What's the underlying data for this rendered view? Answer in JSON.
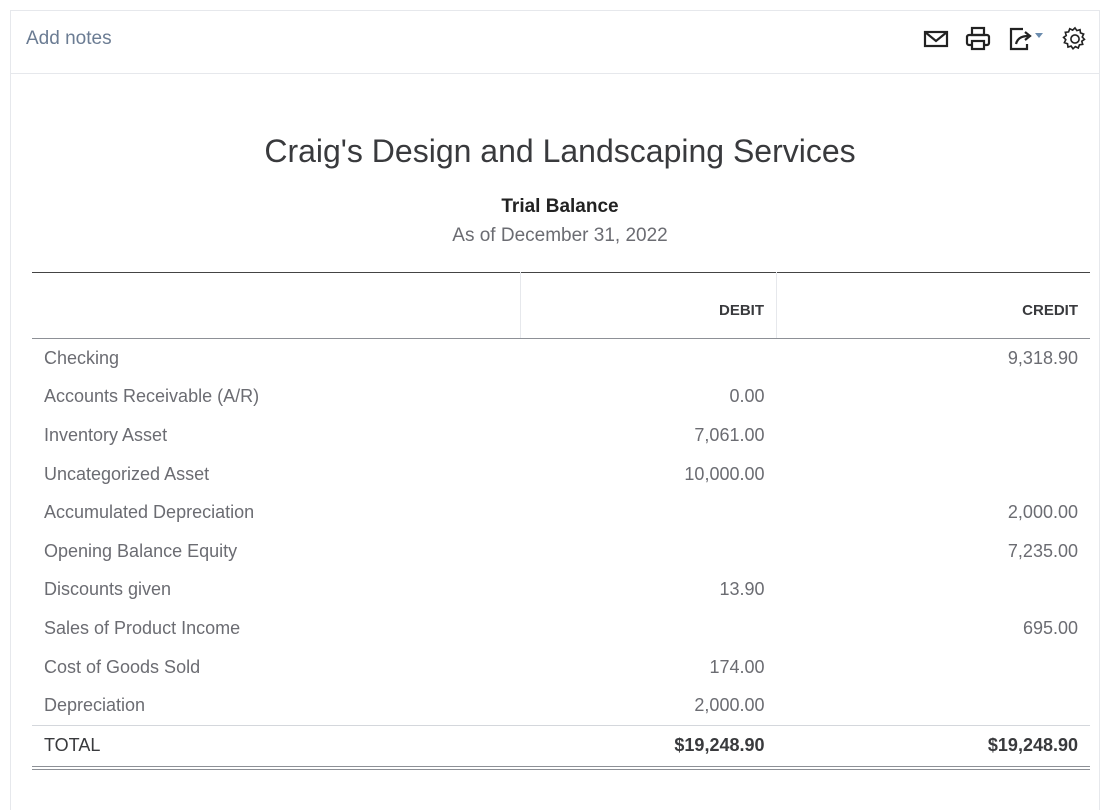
{
  "toolbar": {
    "add_notes": "Add notes",
    "icons": [
      "mail-icon",
      "print-icon",
      "export-icon",
      "settings-icon"
    ]
  },
  "report": {
    "company": "Craig's Design and Landscaping Services",
    "title": "Trial Balance",
    "date": "As of December 31, 2022"
  },
  "table": {
    "headers": [
      "",
      "DEBIT",
      "CREDIT"
    ],
    "rows": [
      {
        "account": "Checking",
        "debit": "",
        "credit": "9,318.90"
      },
      {
        "account": "Accounts Receivable (A/R)",
        "debit": "0.00",
        "credit": ""
      },
      {
        "account": "Inventory Asset",
        "debit": "7,061.00",
        "credit": ""
      },
      {
        "account": "Uncategorized Asset",
        "debit": "10,000.00",
        "credit": ""
      },
      {
        "account": "Accumulated Depreciation",
        "debit": "",
        "credit": "2,000.00"
      },
      {
        "account": "Opening Balance Equity",
        "debit": "",
        "credit": "7,235.00"
      },
      {
        "account": "Discounts given",
        "debit": "13.90",
        "credit": ""
      },
      {
        "account": "Sales of Product Income",
        "debit": "",
        "credit": "695.00"
      },
      {
        "account": "Cost of Goods Sold",
        "debit": "174.00",
        "credit": ""
      },
      {
        "account": "Depreciation",
        "debit": "2,000.00",
        "credit": ""
      }
    ],
    "total": {
      "label": "TOTAL",
      "debit": "$19,248.90",
      "credit": "$19,248.90"
    }
  }
}
